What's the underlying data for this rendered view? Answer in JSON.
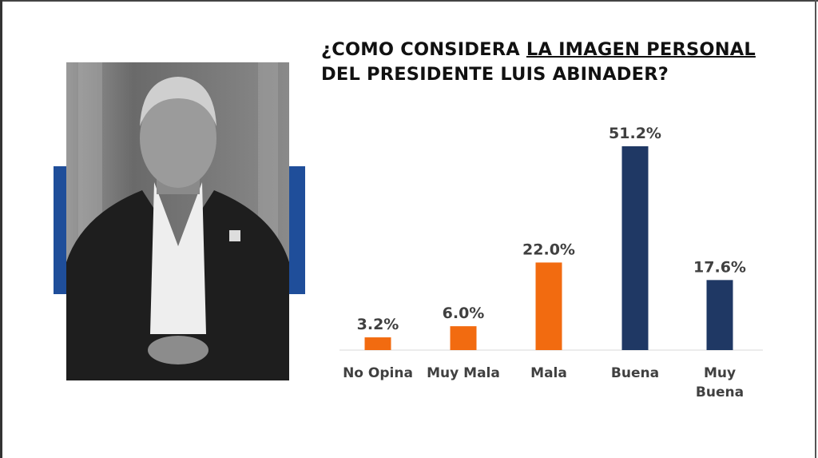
{
  "title": {
    "line1_prefix": "¿COMO CONSIDERA ",
    "line1_underlined": "LA IMAGEN PERSONAL",
    "line2": "DEL PRESIDENTE LUIS ABINADER?"
  },
  "colors": {
    "accent_blue": "#1f4e9a",
    "negative": "#f26b10",
    "positive": "#1f3864",
    "label": "#404040"
  },
  "photo": {
    "description_icon": "portrait-photo"
  },
  "chart_data": {
    "type": "bar",
    "title": "¿COMO CONSIDERA LA IMAGEN PERSONAL DEL PRESIDENTE LUIS ABINADER?",
    "categories": [
      [
        "No Opina"
      ],
      [
        "Muy Mala"
      ],
      [
        "Mala"
      ],
      [
        "Buena"
      ],
      [
        "Muy",
        "Buena"
      ]
    ],
    "values": [
      3.2,
      6.0,
      22.0,
      51.2,
      17.6
    ],
    "value_labels": [
      "3.2%",
      "6.0%",
      "22.0%",
      "51.2%",
      "17.6%"
    ],
    "bar_colors": [
      "#f26b10",
      "#f26b10",
      "#f26b10",
      "#1f3864",
      "#1f3864"
    ],
    "xlabel": "",
    "ylabel": "",
    "ylim": [
      0,
      55
    ],
    "grid": false,
    "legend": "none"
  }
}
